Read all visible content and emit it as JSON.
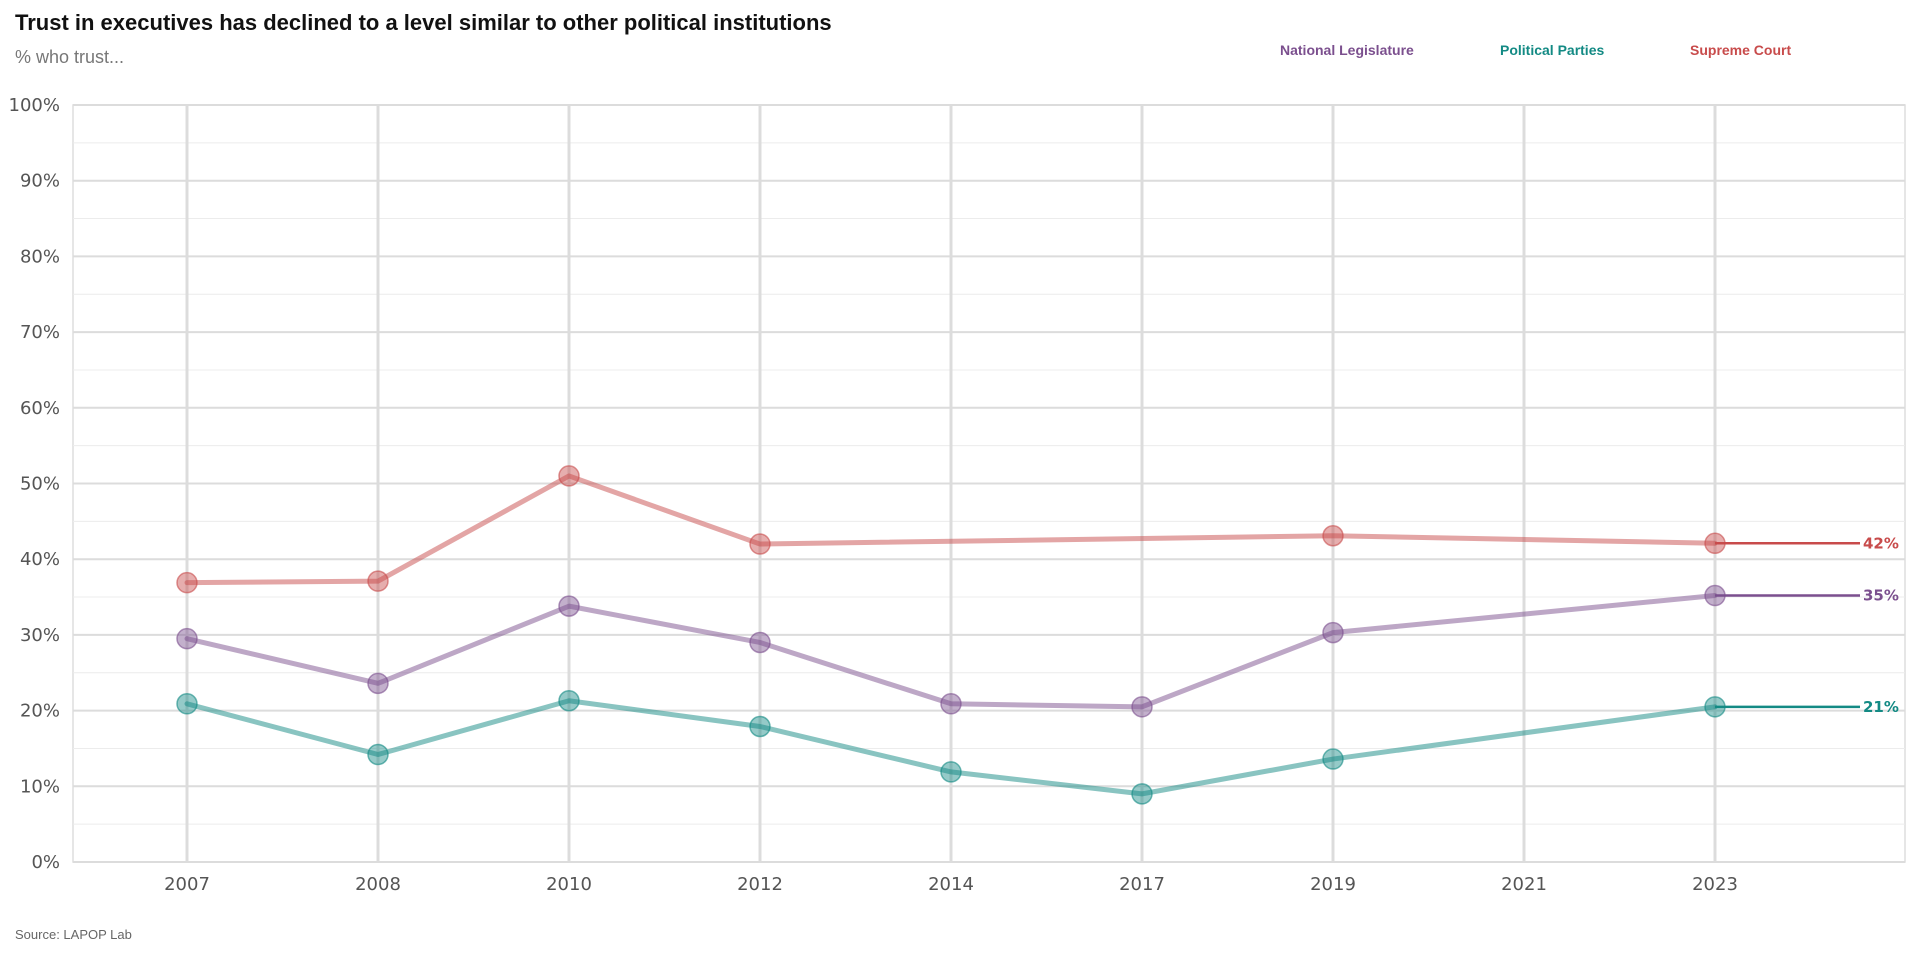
{
  "chart_data": {
    "type": "line",
    "title": "Trust in executives has declined to a level similar to other political institutions",
    "subtitle": "% who trust...",
    "source": "Source: LAPOP Lab",
    "categories": [
      "2007",
      "2008",
      "2010",
      "2012",
      "2014",
      "2017",
      "2019",
      "2021",
      "2023"
    ],
    "ylim": [
      0,
      100
    ],
    "yticks": [
      "0%",
      "10%",
      "20%",
      "30%",
      "40%",
      "50%",
      "60%",
      "70%",
      "80%",
      "90%",
      "100%"
    ],
    "grid": true,
    "legend_position": "top-right",
    "series": [
      {
        "name": "National Legislature",
        "color": "#7b4f8e",
        "values": [
          29.5,
          23.6,
          33.8,
          29.0,
          20.9,
          20.5,
          30.3,
          null,
          35.2
        ],
        "end_label": "35%"
      },
      {
        "name": "Political Parties",
        "color": "#138a84",
        "values": [
          20.9,
          14.2,
          21.3,
          17.9,
          11.9,
          9.0,
          13.6,
          null,
          20.5
        ],
        "end_label": "21%"
      },
      {
        "name": "Supreme Court",
        "color": "#c84b4b",
        "values": [
          36.9,
          37.1,
          51.0,
          42.0,
          null,
          null,
          43.1,
          null,
          42.1
        ],
        "end_label": "42%"
      }
    ]
  }
}
